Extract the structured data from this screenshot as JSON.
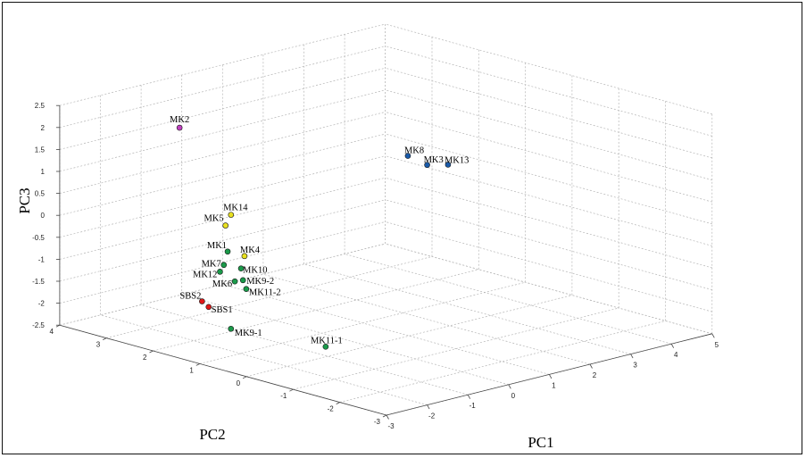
{
  "chart_data": {
    "type": "scatter",
    "dimensions": 3,
    "xlabel": "PC1",
    "ylabel": "PC2",
    "zlabel": "PC3",
    "xlim": [
      -3,
      5
    ],
    "ylim": [
      -3,
      4
    ],
    "zlim": [
      -2.5,
      2.5
    ],
    "x_ticks": [
      "-3",
      "-2",
      "-1",
      "0",
      "1",
      "2",
      "3",
      "4",
      "5"
    ],
    "y_ticks": [
      "-3",
      "-2",
      "-1",
      "0",
      "1",
      "2",
      "3",
      "4"
    ],
    "z_ticks": [
      "-2.5",
      "-2",
      "-1.5",
      "-1",
      "-0.5",
      "0",
      "0.5",
      "1",
      "1.5",
      "2",
      "2.5"
    ],
    "grid": true,
    "colors": {
      "purple": "#c040c0",
      "yellow": "#e8e020",
      "green": "#1a9a4a",
      "red": "#e01818",
      "blue": "#1a5aa8"
    },
    "points": [
      {
        "label": "MK2",
        "x": -1.57,
        "y": 2.68,
        "z": 2.05,
        "color": "purple"
      },
      {
        "label": "MK14",
        "x": -1.51,
        "y": 1.63,
        "z": 0.36,
        "color": "yellow"
      },
      {
        "label": "MK5",
        "x": -1.69,
        "y": 1.59,
        "z": 0.17,
        "color": "yellow"
      },
      {
        "label": "MK1",
        "x": -1.73,
        "y": 1.51,
        "z": -0.39,
        "color": "green"
      },
      {
        "label": "MK4",
        "x": -1.5,
        "y": 1.35,
        "z": -0.5,
        "color": "yellow"
      },
      {
        "label": "MK7",
        "x": -1.87,
        "y": 1.47,
        "z": -0.65,
        "color": "green"
      },
      {
        "label": "MK10",
        "x": -1.63,
        "y": 1.31,
        "z": -0.74,
        "color": "green"
      },
      {
        "label": "MK12",
        "x": -1.93,
        "y": 1.5,
        "z": -0.8,
        "color": "green"
      },
      {
        "label": "MK6",
        "x": -1.76,
        "y": 1.33,
        "z": -1.01,
        "color": "green"
      },
      {
        "label": "MK9-2",
        "x": -1.64,
        "y": 1.26,
        "z": -0.99,
        "color": "green"
      },
      {
        "label": "MK11-2",
        "x": -1.64,
        "y": 1.19,
        "z": -1.17,
        "color": "green"
      },
      {
        "label": "SBS2",
        "x": -2.21,
        "y": 1.64,
        "z": -1.45,
        "color": "red"
      },
      {
        "label": "SBS1",
        "x": -2.14,
        "y": 1.56,
        "z": -1.57,
        "color": "red"
      },
      {
        "label": "MK9-1",
        "x": -1.97,
        "y": 1.23,
        "z": -2.01,
        "color": "green"
      },
      {
        "label": "MK11-1",
        "x": -0.87,
        "y": 0.16,
        "z": -2.36,
        "color": "green"
      },
      {
        "label": "MK8",
        "x": 4.12,
        "y": 2.75,
        "z": 0.07,
        "color": "blue"
      },
      {
        "label": "MK3",
        "x": 4.17,
        "y": 2.38,
        "z": -0.04,
        "color": "blue"
      },
      {
        "label": "MK13",
        "x": 4.43,
        "y": 2.16,
        "z": -0.03,
        "color": "blue"
      }
    ]
  }
}
